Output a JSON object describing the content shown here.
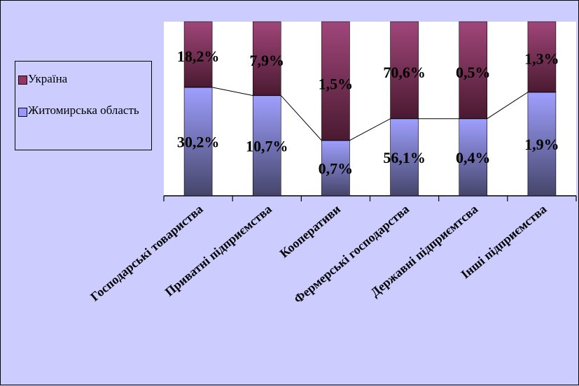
{
  "chart_data": {
    "type": "bar",
    "stacked": true,
    "normalized": true,
    "categories": [
      "Господарські товариства",
      "Приватні підприємства",
      "Кооперативи",
      "Фермерські господарства",
      "Державні підприємтсва",
      "Інші підприємства"
    ],
    "series": [
      {
        "name": "Житомирська область",
        "color": "#9999ff",
        "share": [
          0.623,
          0.576,
          0.318,
          0.443,
          0.443,
          0.595
        ],
        "labels": [
          "30,2%",
          "10,7%",
          "0,7%",
          "56,1%",
          "0,4%",
          "1,9%"
        ]
      },
      {
        "name": "Україна",
        "color": "#993366",
        "share": [
          0.377,
          0.424,
          0.682,
          0.557,
          0.557,
          0.405
        ],
        "labels": [
          "18,2%",
          "7,9%",
          "1,5%",
          "70,6%",
          "0,5%",
          "1,3%"
        ]
      }
    ],
    "ylim": [
      0,
      1
    ],
    "grid": false,
    "legend_position": "left"
  }
}
